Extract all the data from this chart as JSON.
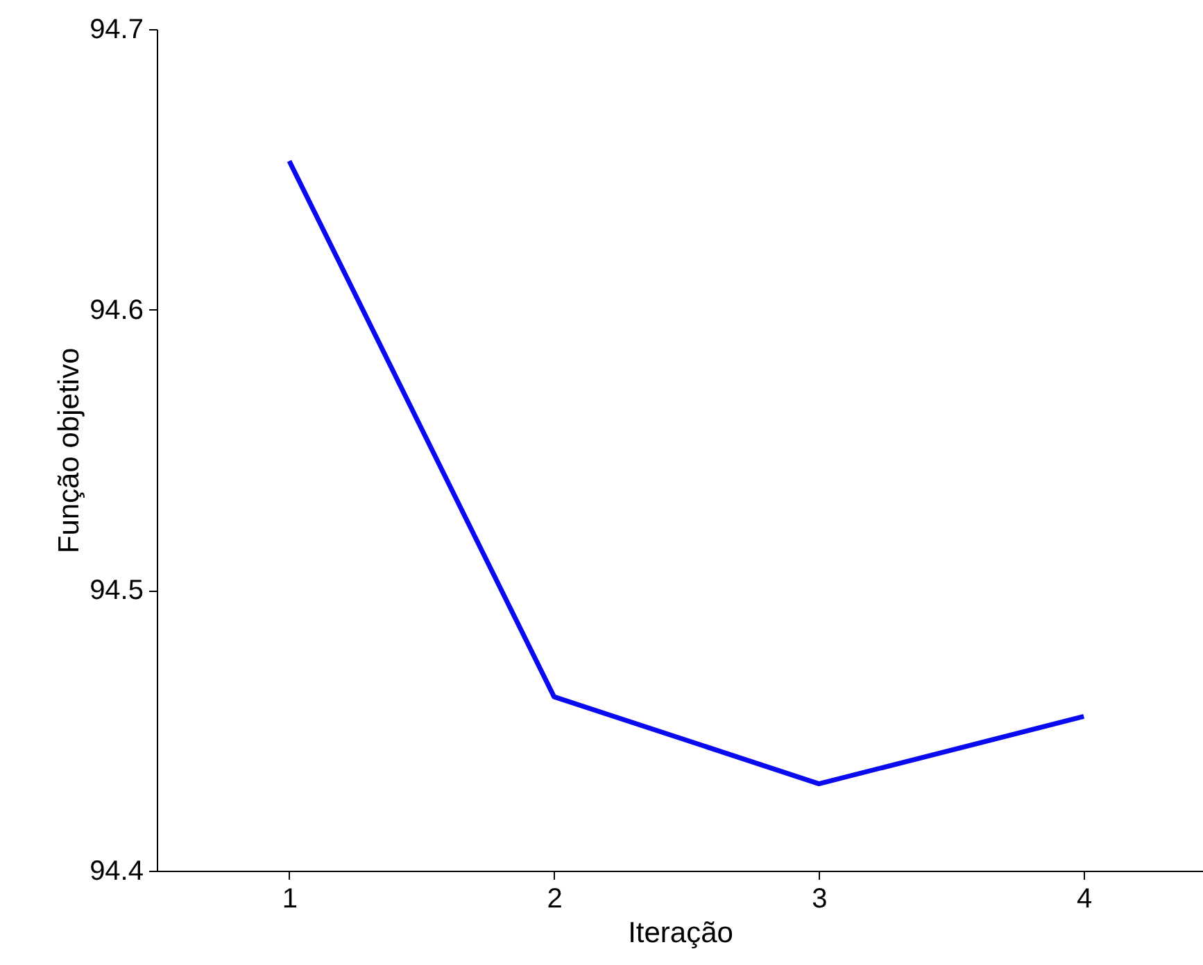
{
  "chart_data": {
    "type": "line",
    "xlabel": "Iteração",
    "ylabel": "Função objetivo",
    "x": [
      1,
      2,
      3,
      4
    ],
    "series": [
      {
        "color": "#0a0af0",
        "values": [
          94.653,
          94.462,
          94.431,
          94.455
        ]
      }
    ],
    "xlim": [
      0.5,
      4.45
    ],
    "xticks": [
      1,
      2,
      3,
      4
    ],
    "ylim": [
      94.4,
      94.7
    ],
    "yticks": [
      94.4,
      94.5,
      94.6,
      94.7
    ],
    "grid": false,
    "marker": "none",
    "line_style": "solid"
  }
}
